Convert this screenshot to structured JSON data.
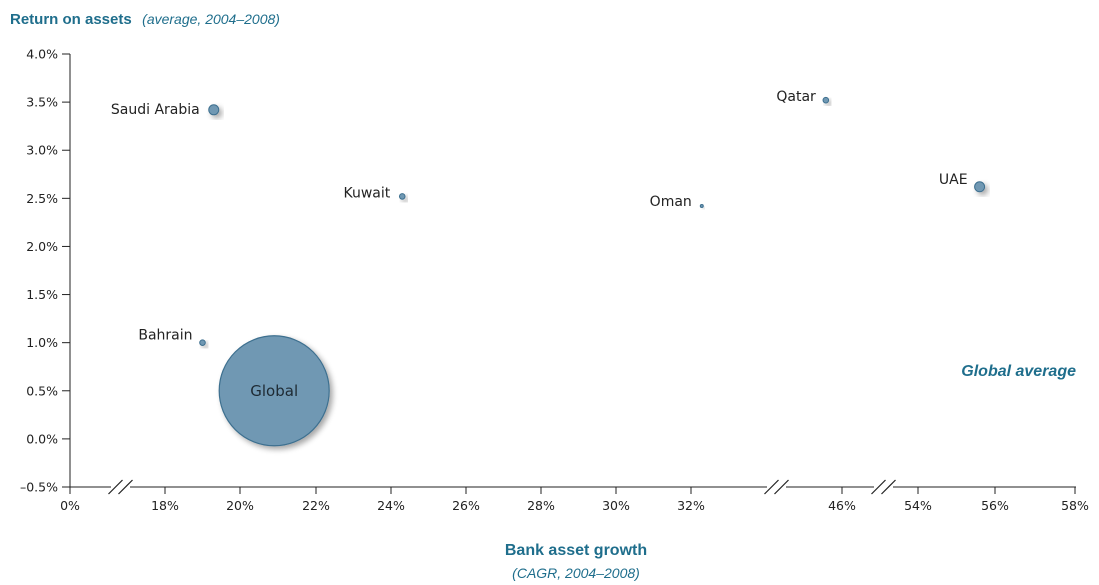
{
  "colors": {
    "accent": "#1f6e8c",
    "bubble_fill": "#6f98b3",
    "bubble_stroke": "#3e6f8f",
    "axis": "#222222"
  },
  "chart_data": {
    "type": "scatter",
    "title": "Return on assets",
    "subtitle": "(average, 2004–2008)",
    "xlabel": "Bank asset growth",
    "xlabel_sub": "(CAGR, 2004–2008)",
    "legend": {
      "text": "Global average",
      "placement": "right"
    },
    "x_ticks": [
      "0%",
      "18%",
      "20%",
      "22%",
      "24%",
      "26%",
      "28%",
      "30%",
      "32%",
      "46%",
      "54%",
      "56%",
      "58%"
    ],
    "x_axis_breaks": [
      [
        0,
        18
      ],
      [
        32,
        46
      ],
      [
        46,
        54
      ]
    ],
    "y_ticks": [
      "4.0%",
      "3.5%",
      "3.0%",
      "2.5%",
      "2.0%",
      "1.5%",
      "1.0%",
      "0.5%",
      "0.0%",
      "–0.5%"
    ],
    "ylim": [
      -0.5,
      4.0
    ],
    "points": [
      {
        "label": "Saudi Arabia",
        "x": 19.3,
        "y": 3.42,
        "size": "medium"
      },
      {
        "label": "Kuwait",
        "x": 24.3,
        "y": 2.52,
        "size": "small"
      },
      {
        "label": "Bahrain",
        "x": 19.0,
        "y": 1.0,
        "size": "small"
      },
      {
        "label": "Global",
        "x": 20.9,
        "y": 0.5,
        "size": "large"
      },
      {
        "label": "Oman",
        "x": 33.0,
        "y": 2.42,
        "size": "tiny"
      },
      {
        "label": "Qatar",
        "x": 44.5,
        "y": 3.52,
        "size": "small"
      },
      {
        "label": "UAE",
        "x": 55.6,
        "y": 2.62,
        "size": "medium"
      }
    ]
  }
}
